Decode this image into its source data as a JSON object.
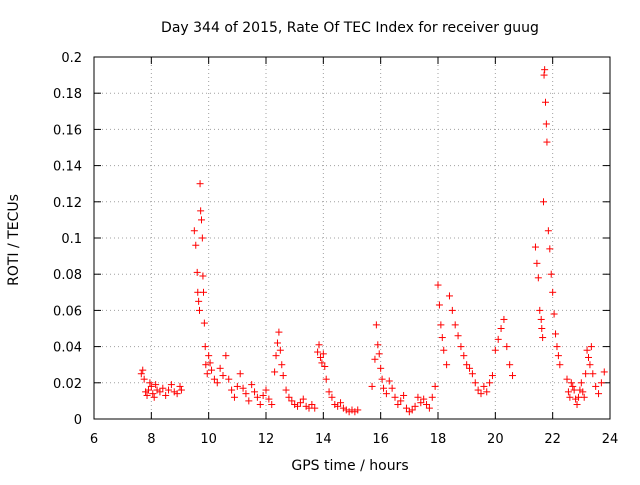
{
  "chart_data": {
    "type": "scatter",
    "title": "Day 344 of 2015, Rate Of TEC Index for receiver guug",
    "xlabel": "GPS time / hours",
    "ylabel": "ROTI / TECUs",
    "xlim": [
      6,
      24
    ],
    "ylim": [
      0,
      0.2
    ],
    "x_ticks": [
      6,
      8,
      10,
      12,
      14,
      16,
      18,
      20,
      22,
      24
    ],
    "y_ticks": [
      0,
      0.02,
      0.04,
      0.06,
      0.08,
      0.1,
      0.12,
      0.14,
      0.16,
      0.18,
      0.2
    ],
    "x_tick_labels": [
      "6",
      "8",
      "10",
      "12",
      "14",
      "16",
      "18",
      "20",
      "22",
      "24"
    ],
    "y_tick_labels": [
      "0",
      "0.02",
      "0.04",
      "0.06",
      "0.08",
      "0.1",
      "0.12",
      "0.14",
      "0.16",
      "0.18",
      "0.2"
    ],
    "grid": true,
    "marker": "+",
    "color": "#ff0000",
    "series": [
      {
        "name": "ROTI",
        "x": [
          7.65,
          7.7,
          7.75,
          7.8,
          7.85,
          7.9,
          7.95,
          8.0,
          8.05,
          8.1,
          8.15,
          8.2,
          8.3,
          8.4,
          8.5,
          8.6,
          8.7,
          8.8,
          8.9,
          9.0,
          9.05,
          9.5,
          9.55,
          9.6,
          9.62,
          9.65,
          9.68,
          9.7,
          9.72,
          9.75,
          9.78,
          9.8,
          9.82,
          9.85,
          9.88,
          9.9,
          9.95,
          10.0,
          10.05,
          10.1,
          10.2,
          10.3,
          10.4,
          10.5,
          10.6,
          10.7,
          10.8,
          10.9,
          11.0,
          11.1,
          11.2,
          11.3,
          11.4,
          11.5,
          11.6,
          11.7,
          11.8,
          11.9,
          12.0,
          12.1,
          12.2,
          12.3,
          12.35,
          12.4,
          12.45,
          12.5,
          12.55,
          12.6,
          12.7,
          12.8,
          12.9,
          13.0,
          13.1,
          13.2,
          13.3,
          13.4,
          13.5,
          13.6,
          13.7,
          13.8,
          13.85,
          13.9,
          13.95,
          14.0,
          14.05,
          14.1,
          14.2,
          14.3,
          14.4,
          14.5,
          14.6,
          14.7,
          14.8,
          14.9,
          15.0,
          15.1,
          15.2,
          15.7,
          15.8,
          15.85,
          15.9,
          15.95,
          16.0,
          16.05,
          16.1,
          16.2,
          16.3,
          16.4,
          16.5,
          16.6,
          16.7,
          16.8,
          16.9,
          17.0,
          17.1,
          17.2,
          17.3,
          17.4,
          17.5,
          17.6,
          17.7,
          17.8,
          17.9,
          18.0,
          18.05,
          18.1,
          18.15,
          18.2,
          18.3,
          18.4,
          18.5,
          18.6,
          18.7,
          18.8,
          18.9,
          19.0,
          19.1,
          19.2,
          19.3,
          19.4,
          19.5,
          19.6,
          19.7,
          19.8,
          19.9,
          20.0,
          20.1,
          20.2,
          20.3,
          20.4,
          20.5,
          20.6,
          21.4,
          21.45,
          21.5,
          21.55,
          21.6,
          21.62,
          21.65,
          21.68,
          21.7,
          21.72,
          21.75,
          21.78,
          21.8,
          21.85,
          21.9,
          21.95,
          22.0,
          22.05,
          22.1,
          22.15,
          22.2,
          22.25,
          22.5,
          22.55,
          22.6,
          22.65,
          22.7,
          22.75,
          22.8,
          22.85,
          22.9,
          22.95,
          23.0,
          23.05,
          23.1,
          23.15,
          23.2,
          23.25,
          23.3,
          23.35,
          23.4,
          23.5,
          23.6,
          23.7,
          23.8
        ],
        "y": [
          0.025,
          0.027,
          0.022,
          0.015,
          0.013,
          0.016,
          0.02,
          0.018,
          0.014,
          0.012,
          0.019,
          0.016,
          0.015,
          0.017,
          0.013,
          0.016,
          0.019,
          0.015,
          0.014,
          0.018,
          0.016,
          0.104,
          0.096,
          0.081,
          0.07,
          0.065,
          0.06,
          0.13,
          0.115,
          0.11,
          0.1,
          0.079,
          0.07,
          0.053,
          0.04,
          0.03,
          0.025,
          0.035,
          0.031,
          0.027,
          0.022,
          0.02,
          0.028,
          0.024,
          0.035,
          0.022,
          0.016,
          0.012,
          0.018,
          0.025,
          0.017,
          0.014,
          0.01,
          0.019,
          0.015,
          0.012,
          0.008,
          0.013,
          0.016,
          0.011,
          0.008,
          0.026,
          0.035,
          0.042,
          0.048,
          0.038,
          0.03,
          0.024,
          0.016,
          0.012,
          0.01,
          0.008,
          0.007,
          0.009,
          0.011,
          0.007,
          0.006,
          0.008,
          0.006,
          0.037,
          0.041,
          0.034,
          0.031,
          0.036,
          0.029,
          0.022,
          0.015,
          0.012,
          0.008,
          0.007,
          0.009,
          0.006,
          0.005,
          0.004,
          0.005,
          0.004,
          0.005,
          0.018,
          0.033,
          0.052,
          0.041,
          0.036,
          0.028,
          0.022,
          0.017,
          0.014,
          0.021,
          0.017,
          0.012,
          0.008,
          0.01,
          0.013,
          0.006,
          0.004,
          0.005,
          0.007,
          0.012,
          0.009,
          0.011,
          0.008,
          0.006,
          0.012,
          0.018,
          0.074,
          0.063,
          0.052,
          0.045,
          0.038,
          0.03,
          0.068,
          0.06,
          0.052,
          0.046,
          0.04,
          0.035,
          0.03,
          0.028,
          0.025,
          0.02,
          0.016,
          0.014,
          0.018,
          0.015,
          0.02,
          0.024,
          0.038,
          0.044,
          0.05,
          0.055,
          0.04,
          0.03,
          0.024,
          0.095,
          0.086,
          0.078,
          0.06,
          0.055,
          0.05,
          0.045,
          0.12,
          0.19,
          0.193,
          0.175,
          0.163,
          0.153,
          0.104,
          0.094,
          0.08,
          0.07,
          0.058,
          0.047,
          0.04,
          0.035,
          0.03,
          0.022,
          0.015,
          0.012,
          0.02,
          0.018,
          0.016,
          0.011,
          0.008,
          0.012,
          0.016,
          0.02,
          0.015,
          0.012,
          0.025,
          0.038,
          0.034,
          0.03,
          0.04,
          0.025,
          0.018,
          0.014,
          0.02,
          0.026
        ]
      }
    ]
  }
}
